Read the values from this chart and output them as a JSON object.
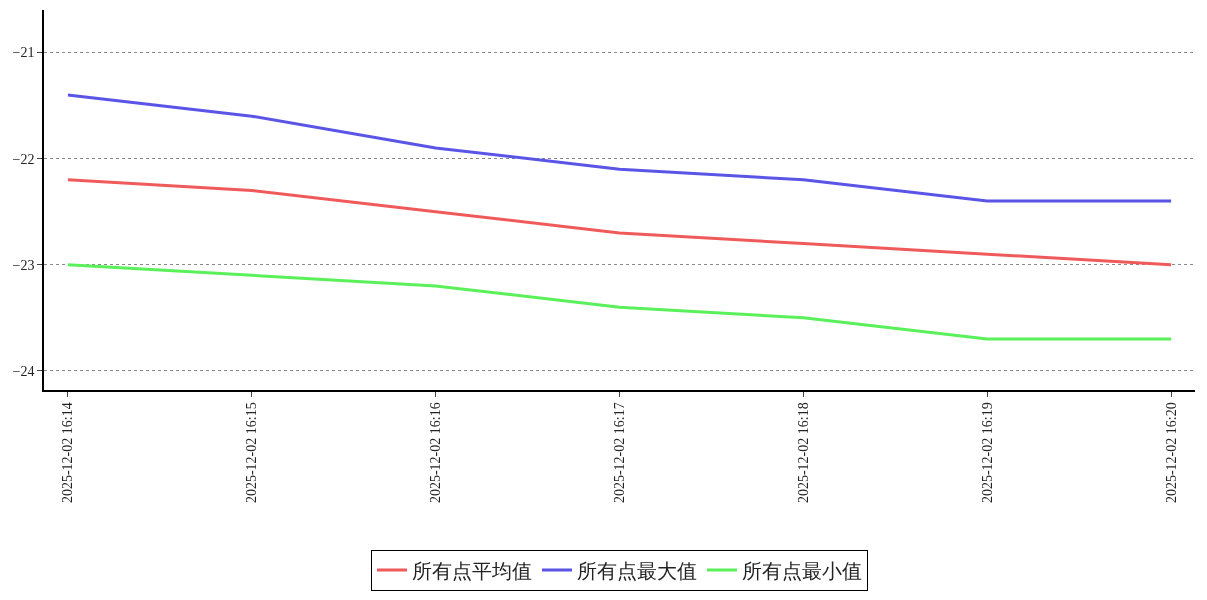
{
  "chart_data": {
    "type": "line",
    "categories": [
      "2025-12-02 16:14",
      "2025-12-02 16:15",
      "2025-12-02 16:16",
      "2025-12-02 16:17",
      "2025-12-02 16:18",
      "2025-12-02 16:19",
      "2025-12-02 16:20"
    ],
    "series": [
      {
        "name": "所有点平均值",
        "color": "#f05a5a",
        "values": [
          -22.2,
          -22.3,
          -22.5,
          -22.7,
          -22.8,
          -22.9,
          -23.0
        ]
      },
      {
        "name": "所有点最大值",
        "color": "#5a55e6",
        "values": [
          -21.4,
          -21.6,
          -21.9,
          -22.1,
          -22.2,
          -22.4,
          -22.4
        ]
      },
      {
        "name": "所有点最小值",
        "color": "#5af05a",
        "values": [
          -23.0,
          -23.1,
          -23.2,
          -23.4,
          -23.5,
          -23.7,
          -23.7
        ]
      }
    ],
    "ylim": [
      -24.18,
      -20.6
    ],
    "yticks": [
      {
        "value": -21,
        "label": "−21"
      },
      {
        "value": -22,
        "label": "−22"
      },
      {
        "value": -23,
        "label": "−23"
      },
      {
        "value": -24,
        "label": "−24"
      }
    ],
    "grid": "y",
    "legend": "bottom",
    "marker": "none",
    "line_style": "solid"
  }
}
